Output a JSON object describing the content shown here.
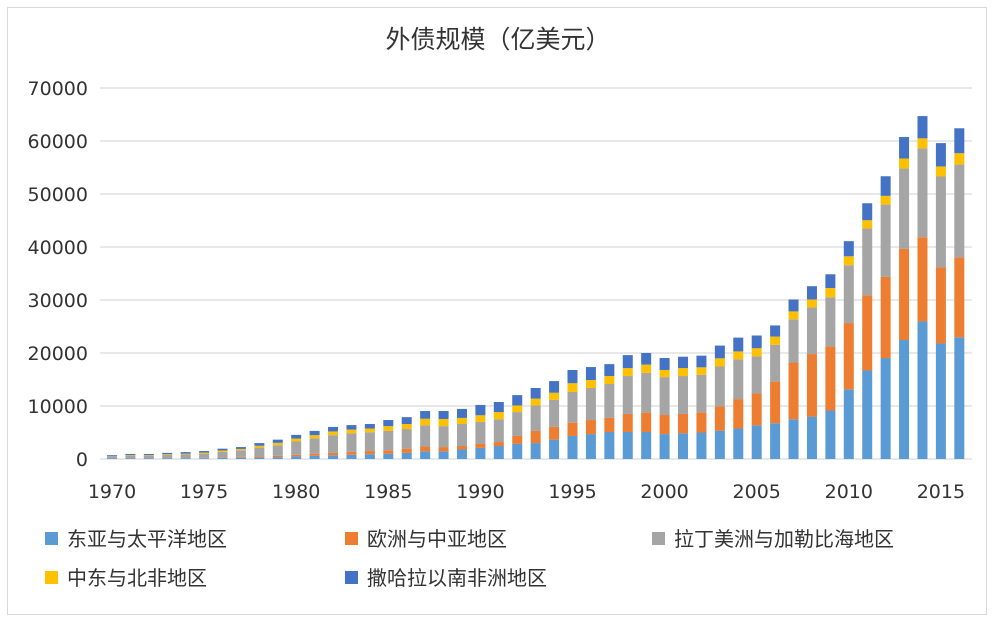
{
  "chart_data": {
    "type": "bar",
    "stacked": true,
    "title": "外债规模（亿美元）",
    "xlabel": "",
    "ylabel": "",
    "ylim": [
      0,
      70000
    ],
    "yticks": [
      0,
      10000,
      20000,
      30000,
      40000,
      50000,
      60000,
      70000
    ],
    "xtick_labels": [
      "1970",
      "1975",
      "1980",
      "1985",
      "1990",
      "1995",
      "2000",
      "2005",
      "2010",
      "2015"
    ],
    "grid": "horizontal",
    "legend_position": "bottom",
    "categories": [
      1970,
      1971,
      1972,
      1973,
      1974,
      1975,
      1976,
      1977,
      1978,
      1979,
      1980,
      1981,
      1982,
      1983,
      1984,
      1985,
      1986,
      1987,
      1988,
      1989,
      1990,
      1991,
      1992,
      1993,
      1994,
      1995,
      1996,
      1997,
      1998,
      1999,
      2000,
      2001,
      2002,
      2003,
      2004,
      2005,
      2006,
      2007,
      2008,
      2009,
      2010,
      2011,
      2012,
      2013,
      2014,
      2015,
      2016
    ],
    "series": [
      {
        "name": "东亚与太平洋地区",
        "color": "#5B9BD5",
        "values": [
          100,
          100,
          100,
          100,
          150,
          150,
          200,
          250,
          300,
          350,
          500,
          600,
          700,
          800,
          900,
          1000,
          1150,
          1450,
          1450,
          1800,
          2100,
          2450,
          2850,
          3000,
          3650,
          4350,
          4700,
          5100,
          5100,
          5100,
          4700,
          4850,
          5000,
          5350,
          5750,
          6350,
          6750,
          7500,
          8000,
          9150,
          13150,
          16700,
          19050,
          22450,
          25950,
          21800,
          22950
        ]
      },
      {
        "name": "欧洲与中亚地区",
        "color": "#ED7D31",
        "values": [
          0,
          0,
          0,
          0,
          0,
          50,
          100,
          150,
          200,
          250,
          300,
          400,
          500,
          550,
          600,
          650,
          800,
          900,
          800,
          650,
          800,
          750,
          1500,
          2300,
          2400,
          2500,
          2650,
          2650,
          3400,
          3650,
          3600,
          3650,
          3800,
          4600,
          5550,
          6000,
          7850,
          10700,
          11800,
          12100,
          12500,
          14200,
          15300,
          17200,
          15900,
          14350,
          15100
        ]
      },
      {
        "name": "拉丁美洲与加勒比海地区",
        "color": "#A5A5A5",
        "values": [
          450,
          550,
          550,
          650,
          700,
          800,
          1050,
          1250,
          1650,
          2000,
          2500,
          2900,
          3300,
          3500,
          3550,
          3650,
          3700,
          4000,
          3950,
          4150,
          4100,
          4300,
          4500,
          4800,
          5100,
          5800,
          6050,
          6400,
          7150,
          7500,
          7150,
          7150,
          7100,
          7500,
          7500,
          7000,
          6950,
          8150,
          8800,
          9250,
          10900,
          12600,
          13650,
          15150,
          16750,
          17150,
          17500
        ]
      },
      {
        "name": "中东与北非地区",
        "color": "#FFC000",
        "values": [
          50,
          100,
          100,
          150,
          150,
          200,
          250,
          250,
          350,
          450,
          550,
          600,
          700,
          700,
          700,
          900,
          950,
          1250,
          1350,
          1150,
          1250,
          1350,
          1250,
          1300,
          1350,
          1650,
          1500,
          1500,
          1500,
          1550,
          1350,
          1500,
          1400,
          1550,
          1500,
          1550,
          1550,
          1500,
          1500,
          1750,
          1700,
          1550,
          1650,
          1900,
          1900,
          1900,
          2150
        ]
      },
      {
        "name": "撒哈拉以南非洲地区",
        "color": "#4472C4",
        "values": [
          150,
          200,
          200,
          250,
          300,
          300,
          350,
          350,
          500,
          600,
          700,
          800,
          850,
          850,
          850,
          1150,
          1300,
          1450,
          1500,
          1700,
          1950,
          1900,
          1950,
          2000,
          2200,
          2500,
          2450,
          2250,
          2450,
          2200,
          2250,
          2150,
          2200,
          2400,
          2600,
          2400,
          2100,
          2250,
          2500,
          2600,
          2850,
          3200,
          3700,
          4050,
          4200,
          4400,
          4700
        ]
      }
    ]
  }
}
